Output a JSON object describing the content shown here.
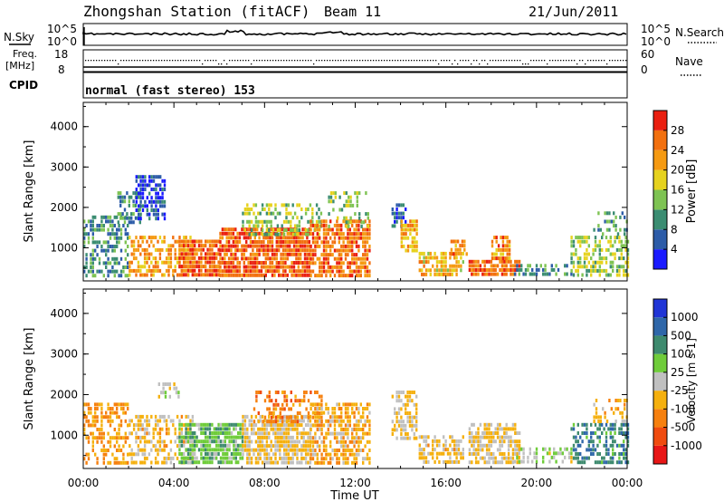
{
  "header": {
    "station": "Zhongshan Station (fitACF)",
    "beam": "Beam 11",
    "date": "21/Jun/2011"
  },
  "strips": {
    "nsky_label": "N.Sky",
    "nsky_ticks": [
      "10^5",
      "10^0"
    ],
    "nsearch_label": "N.Search",
    "nsearch_ticks": [
      "10^5",
      "10^0"
    ],
    "freq_label": "Freq.",
    "freq_unit": "[MHz]",
    "freq_ticks": [
      "18",
      "8"
    ],
    "nave_label": "Nave",
    "nave_ticks": [
      "60",
      "0"
    ],
    "cpid_label": "CPID",
    "cpid_text": "normal (fast stereo) 153"
  },
  "colors": {
    "power_scale": [
      "#1a1aff",
      "#2d5ca8",
      "#3b8d72",
      "#7ec353",
      "#e6d21e",
      "#f59a12",
      "#f2700f",
      "#ea1f10"
    ],
    "velocity_scale": [
      "#e81616",
      "#f04b0f",
      "#f6800e",
      "#f5b00e",
      "#c0c0c0",
      "#6fcc3a",
      "#3e8a6e",
      "#2f67a9",
      "#2035d6"
    ]
  },
  "chart_data": [
    {
      "type": "heatmap",
      "panel": "power",
      "ylabel": "Slant Range [km]",
      "yticks": [
        "1000",
        "2000",
        "3000",
        "4000"
      ],
      "xticks": [
        "00:00",
        "04:00",
        "08:00",
        "12:00",
        "16:00",
        "20:00",
        "00:00"
      ],
      "xlim": [
        0,
        24
      ],
      "ylim": [
        180,
        4600
      ],
      "colorbar": {
        "label": "Power [dB]",
        "ticks": [
          "4",
          "8",
          "12",
          "16",
          "20",
          "24",
          "28"
        ],
        "range": [
          0,
          32
        ]
      },
      "blobs": [
        {
          "t0": 0.0,
          "t1": 2.0,
          "r0": 300,
          "r1": 1800,
          "p": 10,
          "d": 0.55
        },
        {
          "t0": 1.5,
          "t1": 2.5,
          "r0": 1600,
          "r1": 2400,
          "p": 11,
          "d": 0.45
        },
        {
          "t0": 2.3,
          "t1": 3.6,
          "r0": 1700,
          "r1": 2800,
          "p": 5,
          "d": 0.6
        },
        {
          "t0": 2.0,
          "t1": 4.8,
          "r0": 300,
          "r1": 1300,
          "p": 22,
          "d": 0.5
        },
        {
          "t0": 4.2,
          "t1": 6.0,
          "r0": 300,
          "r1": 1200,
          "p": 26,
          "d": 0.85
        },
        {
          "t0": 6.0,
          "t1": 10.0,
          "r0": 300,
          "r1": 1500,
          "p": 27,
          "d": 0.85
        },
        {
          "t0": 7.0,
          "t1": 10.5,
          "r0": 1300,
          "r1": 2100,
          "p": 15,
          "d": 0.45
        },
        {
          "t0": 10.0,
          "t1": 12.6,
          "r0": 300,
          "r1": 1700,
          "p": 25,
          "d": 0.75
        },
        {
          "t0": 10.8,
          "t1": 12.6,
          "r0": 1500,
          "r1": 2400,
          "p": 14,
          "d": 0.35
        },
        {
          "t0": 13.6,
          "t1": 14.2,
          "r0": 1500,
          "r1": 2100,
          "p": 6,
          "d": 0.6
        },
        {
          "t0": 14.0,
          "t1": 14.7,
          "r0": 900,
          "r1": 1700,
          "p": 21,
          "d": 0.7
        },
        {
          "t0": 14.8,
          "t1": 16.8,
          "r0": 300,
          "r1": 900,
          "p": 20,
          "d": 0.7
        },
        {
          "t0": 16.2,
          "t1": 16.9,
          "r0": 800,
          "r1": 1200,
          "p": 24,
          "d": 0.6
        },
        {
          "t0": 17.0,
          "t1": 19.3,
          "r0": 300,
          "r1": 700,
          "p": 26,
          "d": 0.8
        },
        {
          "t0": 18.0,
          "t1": 18.8,
          "r0": 700,
          "r1": 1300,
          "p": 24,
          "d": 0.7
        },
        {
          "t0": 19.0,
          "t1": 21.5,
          "r0": 300,
          "r1": 600,
          "p": 10,
          "d": 0.45
        },
        {
          "t0": 21.5,
          "t1": 24.0,
          "r0": 300,
          "r1": 1300,
          "p": 15,
          "d": 0.55
        },
        {
          "t0": 22.5,
          "t1": 24.0,
          "r0": 1300,
          "r1": 1900,
          "p": 11,
          "d": 0.35
        }
      ]
    },
    {
      "type": "heatmap",
      "panel": "velocity",
      "ylabel": "Slant Range [km]",
      "yticks": [
        "1000",
        "2000",
        "3000",
        "4000"
      ],
      "xticks": [
        "00:00",
        "04:00",
        "08:00",
        "12:00",
        "16:00",
        "20:00",
        "00:00"
      ],
      "xlim": [
        0,
        24
      ],
      "ylim": [
        180,
        4600
      ],
      "xlabel": "Time UT",
      "colorbar": {
        "label": "Velocity [m s-1]",
        "ticks": [
          "-1000",
          "-500",
          "-100",
          "-25",
          "25",
          "100",
          "500",
          "1000"
        ],
        "range": [
          -1200,
          1200
        ]
      },
      "blobs": [
        {
          "t0": 0.0,
          "t1": 2.0,
          "r0": 300,
          "r1": 1800,
          "v": -400,
          "d": 0.55
        },
        {
          "t0": 2.0,
          "t1": 4.8,
          "r0": 300,
          "r1": 1500,
          "v": -200,
          "d": 0.5
        },
        {
          "t0": 3.3,
          "t1": 4.2,
          "r0": 1900,
          "r1": 2300,
          "v": 0,
          "d": 0.7
        },
        {
          "t0": 4.2,
          "t1": 7.0,
          "r0": 300,
          "r1": 1300,
          "v": 300,
          "d": 0.75
        },
        {
          "t0": 7.0,
          "t1": 10.0,
          "r0": 300,
          "r1": 1500,
          "v": -150,
          "d": 0.8
        },
        {
          "t0": 7.5,
          "t1": 10.5,
          "r0": 1300,
          "r1": 2100,
          "v": -600,
          "d": 0.4
        },
        {
          "t0": 10.0,
          "t1": 12.6,
          "r0": 300,
          "r1": 1800,
          "v": -300,
          "d": 0.7
        },
        {
          "t0": 13.6,
          "t1": 14.7,
          "r0": 900,
          "r1": 2100,
          "v": -150,
          "d": 0.6
        },
        {
          "t0": 14.8,
          "t1": 16.8,
          "r0": 300,
          "r1": 1000,
          "v": -200,
          "d": 0.65
        },
        {
          "t0": 17.0,
          "t1": 19.3,
          "r0": 300,
          "r1": 1300,
          "v": -120,
          "d": 0.7
        },
        {
          "t0": 19.0,
          "t1": 21.5,
          "r0": 300,
          "r1": 700,
          "v": 80,
          "d": 0.45
        },
        {
          "t0": 21.5,
          "t1": 24.0,
          "r0": 300,
          "r1": 1300,
          "v": 600,
          "d": 0.55
        },
        {
          "t0": 22.5,
          "t1": 24.0,
          "r0": 1300,
          "r1": 1900,
          "v": -300,
          "d": 0.35
        }
      ]
    }
  ]
}
